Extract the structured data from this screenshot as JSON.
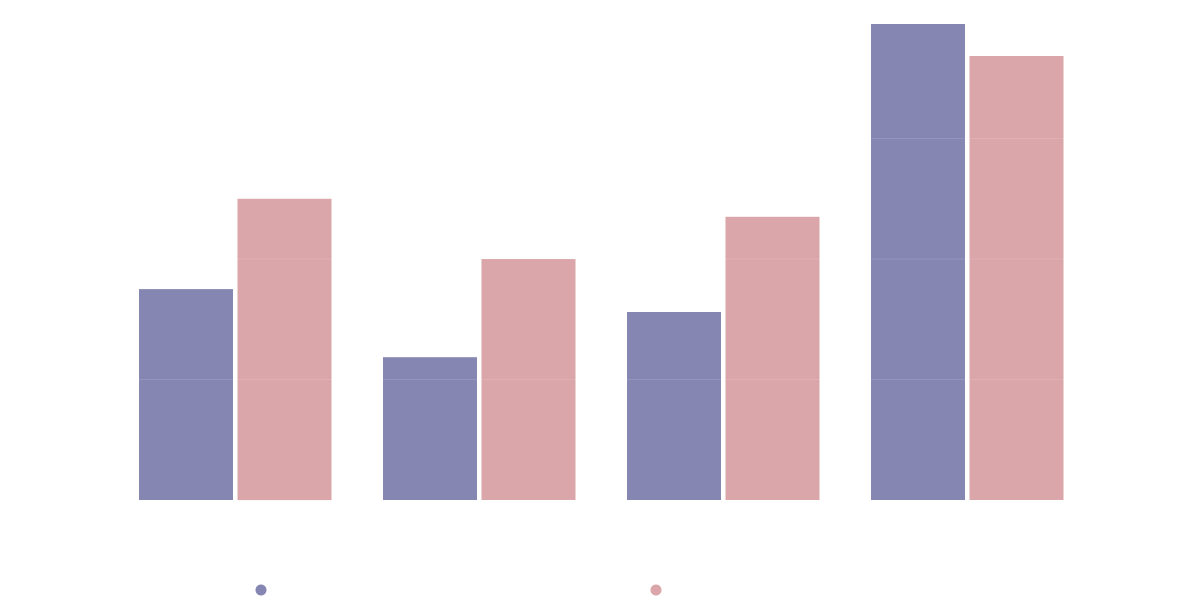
{
  "chart_data": {
    "type": "bar",
    "title": "",
    "xlabel": "",
    "ylabel": "",
    "categories": [
      "",
      "",
      "",
      ""
    ],
    "series": [
      {
        "values": [
          350,
          237,
          312,
          790
        ],
        "color": "#8587b2"
      },
      {
        "values": [
          500,
          400,
          470,
          737
        ],
        "color": "#dba6aa"
      }
    ],
    "ylim": [
      0,
      800
    ],
    "grid": true,
    "legend": "bottom"
  }
}
